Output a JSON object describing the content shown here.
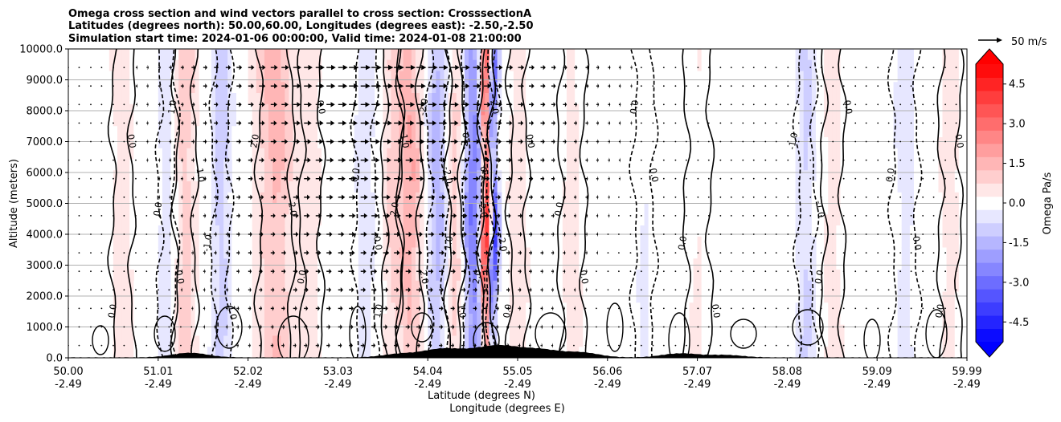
{
  "chart_data": {
    "type": "heatmap",
    "title_lines": [
      "Omega cross section and wind vectors parallel to cross section: CrosssectionA",
      "Latitudes (degrees north): 50.00,60.00, Longitudes (degrees east): -2.50,-2.50",
      "Simulation start time: 2024-01-06 00:00:00, Valid time: 2024-01-08 21:00:00"
    ],
    "ylabel": "Altitude (meters)",
    "xlabel_lat": "Latitude (degrees N)",
    "xlabel_lon": "Longitude (degrees E)",
    "ylim": [
      0,
      10000
    ],
    "y_ticks": [
      "0.0",
      "1000.0",
      "2000.0",
      "3000.0",
      "4000.0",
      "5000.0",
      "6000.0",
      "7000.0",
      "8000.0",
      "9000.0",
      "10000.0"
    ],
    "x_ticks_lat": [
      "50.00",
      "51.01",
      "52.02",
      "53.03",
      "54.04",
      "55.05",
      "56.06",
      "57.07",
      "58.08",
      "59.09",
      "59.99"
    ],
    "x_ticks_lon": [
      "-2.49",
      "-2.49",
      "-2.49",
      "-2.49",
      "-2.49",
      "-2.49",
      "-2.49",
      "-2.49",
      "-2.49",
      "-2.49",
      "-2.49"
    ],
    "colorbar": {
      "label": "Omega Pa/s",
      "range": [
        -5.25,
        5.25
      ],
      "ticks": [
        "-4.5",
        "-3.0",
        "-1.5",
        "0.0",
        "1.5",
        "3.0",
        "4.5"
      ],
      "tick_values": [
        -4.5,
        -3.0,
        -1.5,
        0.0,
        1.5,
        3.0,
        4.5
      ],
      "levels": 21,
      "neg_color": "#0000ff",
      "pos_color": "#ff0000",
      "mid_color": "#ffffff"
    },
    "vector_key": {
      "label": "50 m/s",
      "speed_ms": 50
    },
    "omega_bands": [
      {
        "lat": 50.6,
        "width": 0.12,
        "value": 0.6
      },
      {
        "lat": 51.1,
        "width": 0.1,
        "value": -0.7
      },
      {
        "lat": 51.3,
        "width": 0.12,
        "value": 1.2
      },
      {
        "lat": 51.7,
        "width": 0.1,
        "value": -1.2
      },
      {
        "lat": 52.3,
        "width": 0.2,
        "value": 1.6
      },
      {
        "lat": 52.7,
        "width": 0.12,
        "value": 0.5
      },
      {
        "lat": 53.3,
        "width": 0.12,
        "value": -0.5
      },
      {
        "lat": 53.6,
        "width": 0.1,
        "value": 0.9
      },
      {
        "lat": 53.8,
        "width": 0.12,
        "value": 1.8
      },
      {
        "lat": 54.1,
        "width": 0.1,
        "value": -1.6
      },
      {
        "lat": 54.3,
        "width": 0.08,
        "value": 1.1
      },
      {
        "lat": 54.5,
        "width": 0.1,
        "value": -2.8
      },
      {
        "lat": 54.65,
        "width": 0.06,
        "value": 4.6
      },
      {
        "lat": 54.72,
        "width": 0.05,
        "value": -4.2
      },
      {
        "lat": 55.0,
        "width": 0.1,
        "value": 0.7
      },
      {
        "lat": 55.6,
        "width": 0.15,
        "value": 0.4
      },
      {
        "lat": 56.4,
        "width": 0.12,
        "value": -0.3
      },
      {
        "lat": 57.0,
        "width": 0.15,
        "value": 0.3
      },
      {
        "lat": 58.2,
        "width": 0.1,
        "value": -1.0
      },
      {
        "lat": 58.5,
        "width": 0.12,
        "value": 0.5
      },
      {
        "lat": 59.3,
        "width": 0.15,
        "value": -0.4
      },
      {
        "lat": 59.8,
        "width": 0.12,
        "value": 0.5
      }
    ],
    "contour_labels": [
      "0.0",
      "-1.0",
      "1.0",
      "-2.0",
      "2.0"
    ],
    "wind": {
      "columns_lat": [
        50.0,
        50.12,
        50.25,
        50.37,
        50.5,
        50.62,
        50.75,
        50.87,
        51.0,
        51.12,
        51.25,
        51.37,
        51.5,
        51.62,
        51.75,
        51.87,
        52.0,
        52.12,
        52.25,
        52.37,
        52.5,
        52.62,
        52.75,
        52.87,
        53.0,
        53.12,
        53.25,
        53.37,
        53.5,
        53.62,
        53.75,
        53.87,
        54.0,
        54.12,
        54.25,
        54.37,
        54.5,
        54.62,
        54.75,
        54.87,
        55.0,
        55.12,
        55.25,
        55.37,
        55.5,
        55.62,
        55.75,
        55.87,
        56.0,
        56.12,
        56.25,
        56.37,
        56.5,
        56.62,
        56.75,
        56.87,
        57.0,
        57.12,
        57.25,
        57.37,
        57.5,
        57.62,
        57.75,
        57.87,
        58.0,
        58.12,
        58.25,
        58.37,
        58.5,
        58.62,
        58.75,
        58.87,
        59.0,
        59.12,
        59.25,
        59.37,
        59.5,
        59.62,
        59.75,
        59.87
      ],
      "rows_alt": [
        400,
        1000,
        1600,
        2200,
        2800,
        3400,
        4000,
        4600,
        5200,
        5800,
        6400,
        7000,
        7600,
        8200,
        8800,
        9400
      ],
      "peak_speed_ms": 22,
      "peak_lat": 53.5
    },
    "terrain_bumps": [
      {
        "lat": 51.35,
        "height": 150
      },
      {
        "lat": 53.7,
        "height": 120
      },
      {
        "lat": 54.15,
        "height": 260
      },
      {
        "lat": 54.55,
        "height": 200
      },
      {
        "lat": 54.85,
        "height": 300
      },
      {
        "lat": 55.25,
        "height": 240
      },
      {
        "lat": 55.7,
        "height": 160
      },
      {
        "lat": 56.8,
        "height": 130
      },
      {
        "lat": 57.3,
        "height": 80
      }
    ]
  }
}
